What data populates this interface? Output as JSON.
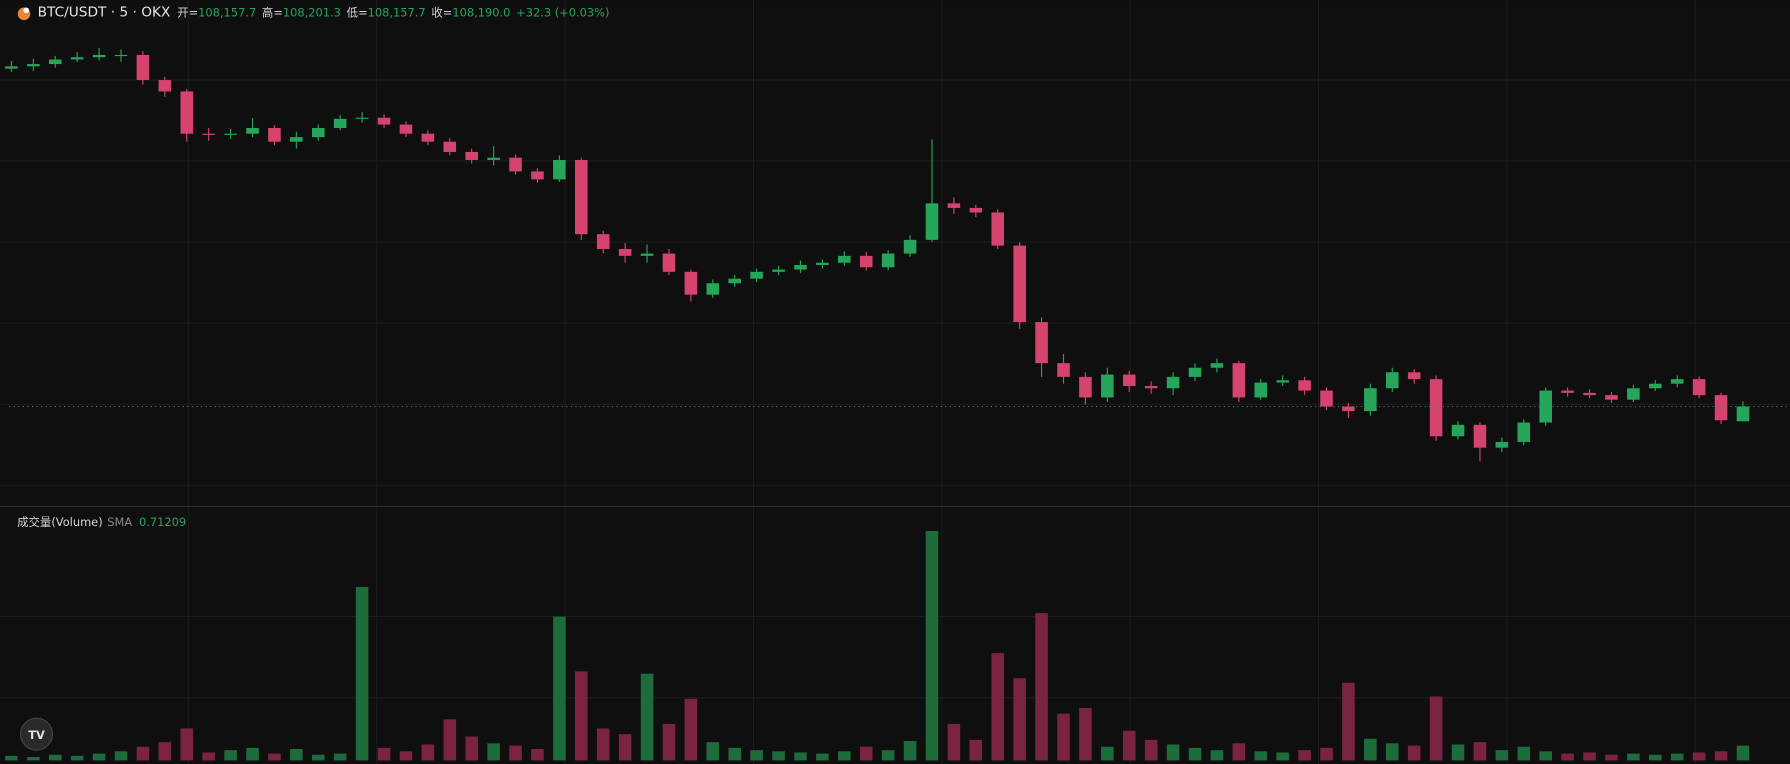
{
  "chart_data": {
    "type": "candlestick",
    "title": "BTC/USDT · 5 · OKX",
    "ohlc_legend": [
      {
        "name": "开=",
        "value": 108157.7,
        "label": "108,157.7"
      },
      {
        "name": "高=",
        "value": 108201.3,
        "label": "108,201.3"
      },
      {
        "name": "低=",
        "value": 108157.7,
        "label": "108,157.7"
      },
      {
        "name": "收=",
        "value": 108190.0,
        "label": "108,190.0"
      }
    ],
    "change_label": "+32.3 (+0.03%)",
    "volume_title": "成交量(Volume)",
    "volume_sma_name": "SMA",
    "volume_sma": 0.71209,
    "up_color": "#26a65b",
    "down_color": "#d6436e",
    "volume_up_color": "#1e6b3c",
    "volume_down_color": "#7b2441",
    "ylim": [
      107972.5,
      109080
    ],
    "vlim": [
      0,
      21.6
    ],
    "open": [
      108930,
      108935,
      108940,
      108950,
      108955,
      108960,
      108960,
      108905,
      108880,
      108787.5,
      108785,
      108787.5,
      108800,
      108770,
      108780,
      108800,
      108820,
      108822.5,
      108807.5,
      108787.5,
      108770,
      108747.5,
      108730,
      108735,
      108705,
      108687.5,
      108730,
      108567.5,
      108535,
      108520,
      108525,
      108485,
      108435,
      108460,
      108470,
      108485,
      108490,
      108500,
      108505,
      108520,
      108495,
      108525,
      108555,
      108635,
      108625,
      108615,
      108542.5,
      108375,
      108285,
      108255,
      108210,
      108260,
      108235,
      108230,
      108255,
      108275,
      108285,
      108210,
      108242.5,
      108247.5,
      108225,
      108190,
      108180,
      108230,
      108265,
      108250,
      108125,
      108150,
      108100,
      108112.5,
      108155,
      108225,
      108220,
      108215,
      108205,
      108230,
      108240,
      108250,
      108215,
      108157.7
    ],
    "high": [
      108947,
      108952,
      108958,
      108966,
      108975,
      108972,
      108968,
      108912,
      108885,
      108800,
      108798,
      108822,
      108806,
      108792,
      108808,
      108828,
      108835,
      108830,
      108815,
      108795,
      108778,
      108755,
      108760,
      108742,
      108712,
      108740,
      108735,
      108575,
      108548,
      108545,
      108535,
      108490,
      108468,
      108478,
      108492,
      108498,
      108510,
      108512,
      108530,
      108528,
      108532,
      108565,
      108775,
      108648,
      108632,
      108622,
      108550,
      108385,
      108305,
      108265,
      108275,
      108268,
      108245,
      108265,
      108285,
      108295,
      108290,
      108250,
      108258,
      108255,
      108232,
      108198,
      108240,
      108275,
      108272,
      108258,
      108158,
      108156,
      108122,
      108162,
      108232,
      108232,
      108228,
      108222,
      108238,
      108248,
      108258,
      108256,
      108220,
      108201.3
    ],
    "low": [
      108923,
      108925,
      108932,
      108944,
      108948,
      108945,
      108895,
      108868,
      108770,
      108772,
      108776,
      108780,
      108762,
      108755,
      108772,
      108795,
      108812,
      108800,
      108780,
      108762,
      108740,
      108722,
      108718,
      108698,
      108680,
      108682,
      108555,
      108525,
      108505,
      108505,
      108478,
      108420,
      108428,
      108452,
      108462,
      108478,
      108482,
      108492,
      108498,
      108488,
      108488,
      108518,
      108550,
      108612,
      108605,
      108535,
      108360,
      108255,
      108240,
      108195,
      108200,
      108222,
      108218,
      108215,
      108245,
      108265,
      108200,
      108205,
      108235,
      108215,
      108182,
      108165,
      108170,
      108222,
      108240,
      108115,
      108118,
      108070,
      108090,
      108105,
      108148,
      108212,
      108208,
      108198,
      108200,
      108224,
      108232,
      108208,
      108152,
      108157.7
    ],
    "close": [
      108935,
      108940,
      108950,
      108955,
      108960,
      108960,
      108905,
      108880,
      108787.5,
      108785,
      108787.5,
      108800,
      108770,
      108780,
      108800,
      108820,
      108822.5,
      108807.5,
      108787.5,
      108770,
      108747.5,
      108730,
      108735,
      108705,
      108687.5,
      108730,
      108567.5,
      108535,
      108520,
      108525,
      108485,
      108435,
      108460,
      108470,
      108485,
      108490,
      108500,
      108505,
      108520,
      108495,
      108525,
      108555,
      108635,
      108625,
      108615,
      108542.5,
      108375,
      108285,
      108255,
      108210,
      108260,
      108235,
      108230,
      108255,
      108275,
      108285,
      108210,
      108242.5,
      108247.5,
      108225,
      108190,
      108180,
      108230,
      108265,
      108250,
      108125,
      108150,
      108100,
      108112.5,
      108155,
      108225,
      108220,
      108215,
      108205,
      108230,
      108240,
      108250,
      108215,
      108160,
      108190.0
    ],
    "volume": [
      0.4,
      0.3,
      0.5,
      0.4,
      0.6,
      0.8,
      1.2,
      1.6,
      2.8,
      0.7,
      0.9,
      1.1,
      0.6,
      1.0,
      0.5,
      0.6,
      15.2,
      1.1,
      0.8,
      1.4,
      3.6,
      2.1,
      1.5,
      1.3,
      1.0,
      12.6,
      7.8,
      2.8,
      2.3,
      7.6,
      3.2,
      5.4,
      1.6,
      1.1,
      0.9,
      0.8,
      0.7,
      0.6,
      0.8,
      1.2,
      0.9,
      1.7,
      20.1,
      3.2,
      1.8,
      9.4,
      7.2,
      12.9,
      4.1,
      4.6,
      1.2,
      2.6,
      1.8,
      1.4,
      1.1,
      0.9,
      1.5,
      0.8,
      0.7,
      0.9,
      1.1,
      6.8,
      1.9,
      1.5,
      1.3,
      5.6,
      1.4,
      1.6,
      0.9,
      1.2,
      0.8,
      0.6,
      0.7,
      0.5,
      0.6,
      0.5,
      0.6,
      0.7,
      0.8,
      1.3
    ]
  }
}
